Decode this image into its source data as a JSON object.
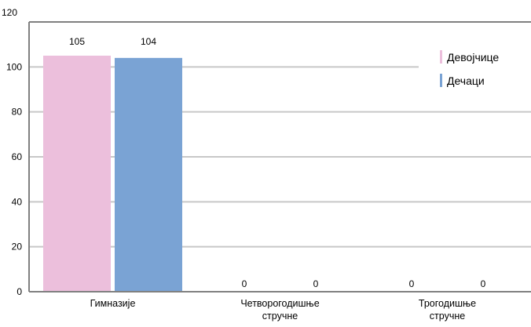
{
  "chart_data": {
    "type": "bar",
    "title": "",
    "xlabel": "",
    "ylabel": "",
    "categories": [
      [
        "Гимназије"
      ],
      [
        "Четворогодишње",
        "стручне"
      ],
      [
        "Трогодишње",
        "стручне"
      ]
    ],
    "series": [
      {
        "name": "Девојчице",
        "color": "#ecbfdc",
        "values": [
          105,
          0,
          0
        ]
      },
      {
        "name": "Дечаци",
        "color": "#7aa3d4",
        "values": [
          104,
          0,
          0
        ]
      }
    ],
    "data_labels": [
      [
        "105",
        "0",
        "0"
      ],
      [
        "104",
        "0",
        "0"
      ]
    ],
    "ylim": [
      0,
      120
    ],
    "yticks": [
      0,
      20,
      40,
      60,
      80,
      100,
      120
    ],
    "grid": true,
    "gridline_color": "#c8c8c8",
    "axis_color": "#808080",
    "legend_position": "top-right"
  }
}
